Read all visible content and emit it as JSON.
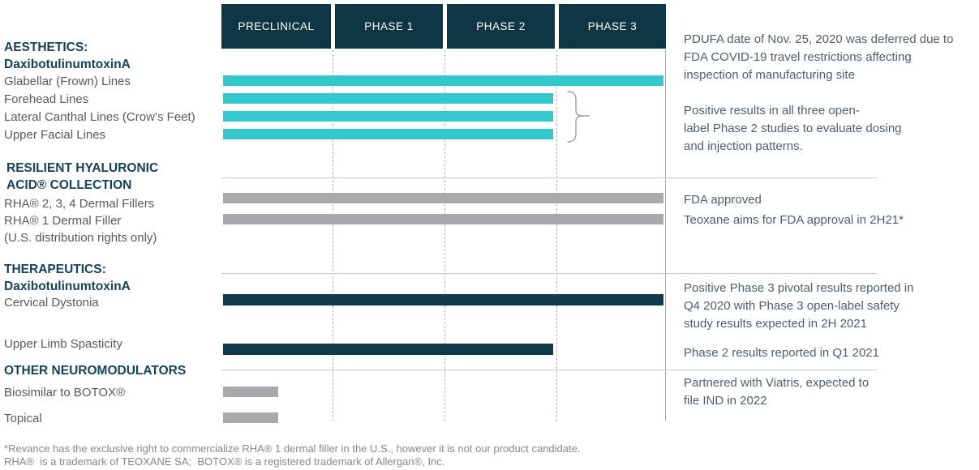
{
  "chart_data": {
    "type": "bar",
    "variant": "drug-development-pipeline",
    "stages": [
      "PRECLINICAL",
      "PHASE 1",
      "PHASE 2",
      "PHASE 3"
    ],
    "stage_span_total": 4,
    "series": [
      {
        "name": "Glabellar (Frown) Lines",
        "group": "AESTHETICS: DaxibotulinumtoxinA",
        "extent_stages": 4,
        "color": "#32c6cd"
      },
      {
        "name": "Forehead Lines",
        "group": "AESTHETICS: DaxibotulinumtoxinA",
        "extent_stages": 3,
        "color": "#32c6cd"
      },
      {
        "name": "Lateral Canthal Lines (Crow’s Feet)",
        "group": "AESTHETICS: DaxibotulinumtoxinA",
        "extent_stages": 3,
        "color": "#32c6cd"
      },
      {
        "name": "Upper Facial Lines",
        "group": "AESTHETICS: DaxibotulinumtoxinA",
        "extent_stages": 3,
        "color": "#32c6cd"
      },
      {
        "name": "RHA® 2, 3, 4 Dermal Fillers",
        "group": "RESILIENT HYALURONIC ACID® COLLECTION",
        "extent_stages": 4,
        "color": "#a7a9ac"
      },
      {
        "name": "RHA® 1 Dermal Filler (U.S. distribution rights only)",
        "group": "RESILIENT HYALURONIC ACID® COLLECTION",
        "extent_stages": 4,
        "color": "#a7a9ac"
      },
      {
        "name": "Cervical Dystonia",
        "group": "THERAPEUTICS: DaxibotulinumtoxinA",
        "extent_stages": 4,
        "color": "#0e3a4a"
      },
      {
        "name": "Upper Limb Spasticity",
        "group": "THERAPEUTICS: DaxibotulinumtoxinA",
        "extent_stages": 3,
        "color": "#0e3a4a"
      },
      {
        "name": "Biosimilar to BOTOX®",
        "group": "OTHER NEUROMODULATORS",
        "extent_stages": 0.5,
        "color": "#a7a9ac"
      },
      {
        "name": "Topical",
        "group": "OTHER NEUROMODULATORS",
        "extent_stages": 0.5,
        "color": "#a7a9ac"
      }
    ],
    "legend_position": "none",
    "grid": "dashed-vertical-stage-boundaries"
  },
  "left": {
    "aesthetics": {
      "l1": "AESTHETICS:",
      "l2": "DaxibotulinumtoxinA"
    },
    "glabellar": "Glabellar (Frown) Lines",
    "forehead": "Forehead Lines",
    "lateral": "Lateral Canthal Lines (Crow’s Feet)",
    "upper_facial": "Upper Facial Lines",
    "rha_title": {
      "l1": "RESILIENT HYALURONIC",
      "l2": "ACID® COLLECTION"
    },
    "rha234": "RHA® 2, 3, 4 Dermal Fillers",
    "rha1": "RHA® 1 Dermal Filler",
    "us_rights": "(U.S. distribution rights only)",
    "therapeutics": {
      "l1": "THERAPEUTICS:",
      "l2": "DaxibotulinumtoxinA"
    },
    "cervical": "Cervical Dystonia",
    "upper_limb": "Upper Limb Spasticity",
    "other_neuro": "OTHER NEUROMODULATORS",
    "biosimilar": "Biosimilar to BOTOX®",
    "topical": "Topical"
  },
  "annotations": [
    {
      "lines": [
        "PDUFA date of Nov. 25, 2020 was deferred due to",
        "FDA COVID-19 travel restrictions affecting",
        "inspection of manufacturing site"
      ]
    },
    {
      "lines": [
        "Positive results in all three open-",
        "label Phase 2 studies to evaluate dosing",
        "and injection patterns."
      ]
    },
    {
      "lines": [
        "FDA approved",
        "Teoxane aims for FDA approval in 2H21*"
      ]
    },
    {
      "lines": [
        "Positive Phase 3 pivotal results reported in",
        "Q4 2020 with Phase 3 open-label safety",
        "study results expected in 2H 2021"
      ]
    },
    {
      "lines": [
        "Phase 2 results reported in Q1 2021"
      ]
    },
    {
      "lines": [
        "Partnered with Viatris, expected to",
        "file IND in 2022"
      ]
    }
  ],
  "footnotes": [
    "*Revance has the exclusive right to commercialize RHA® 1 dermal filler in the U.S., however it is not our product candidate.",
    "RHA®  is a trademark of TEOXANE SA;  BOTOX® is a registered trademark of Allergan®, Inc."
  ],
  "colors": {
    "navy_bar": "#0e3a4a",
    "header_navy": "#0e3644",
    "teal": "#32c6cd",
    "gray_bar": "#a7a9ac",
    "category_text": "#15425a",
    "label_text": "#58595b",
    "annotation_text": "#4e5f6b"
  }
}
